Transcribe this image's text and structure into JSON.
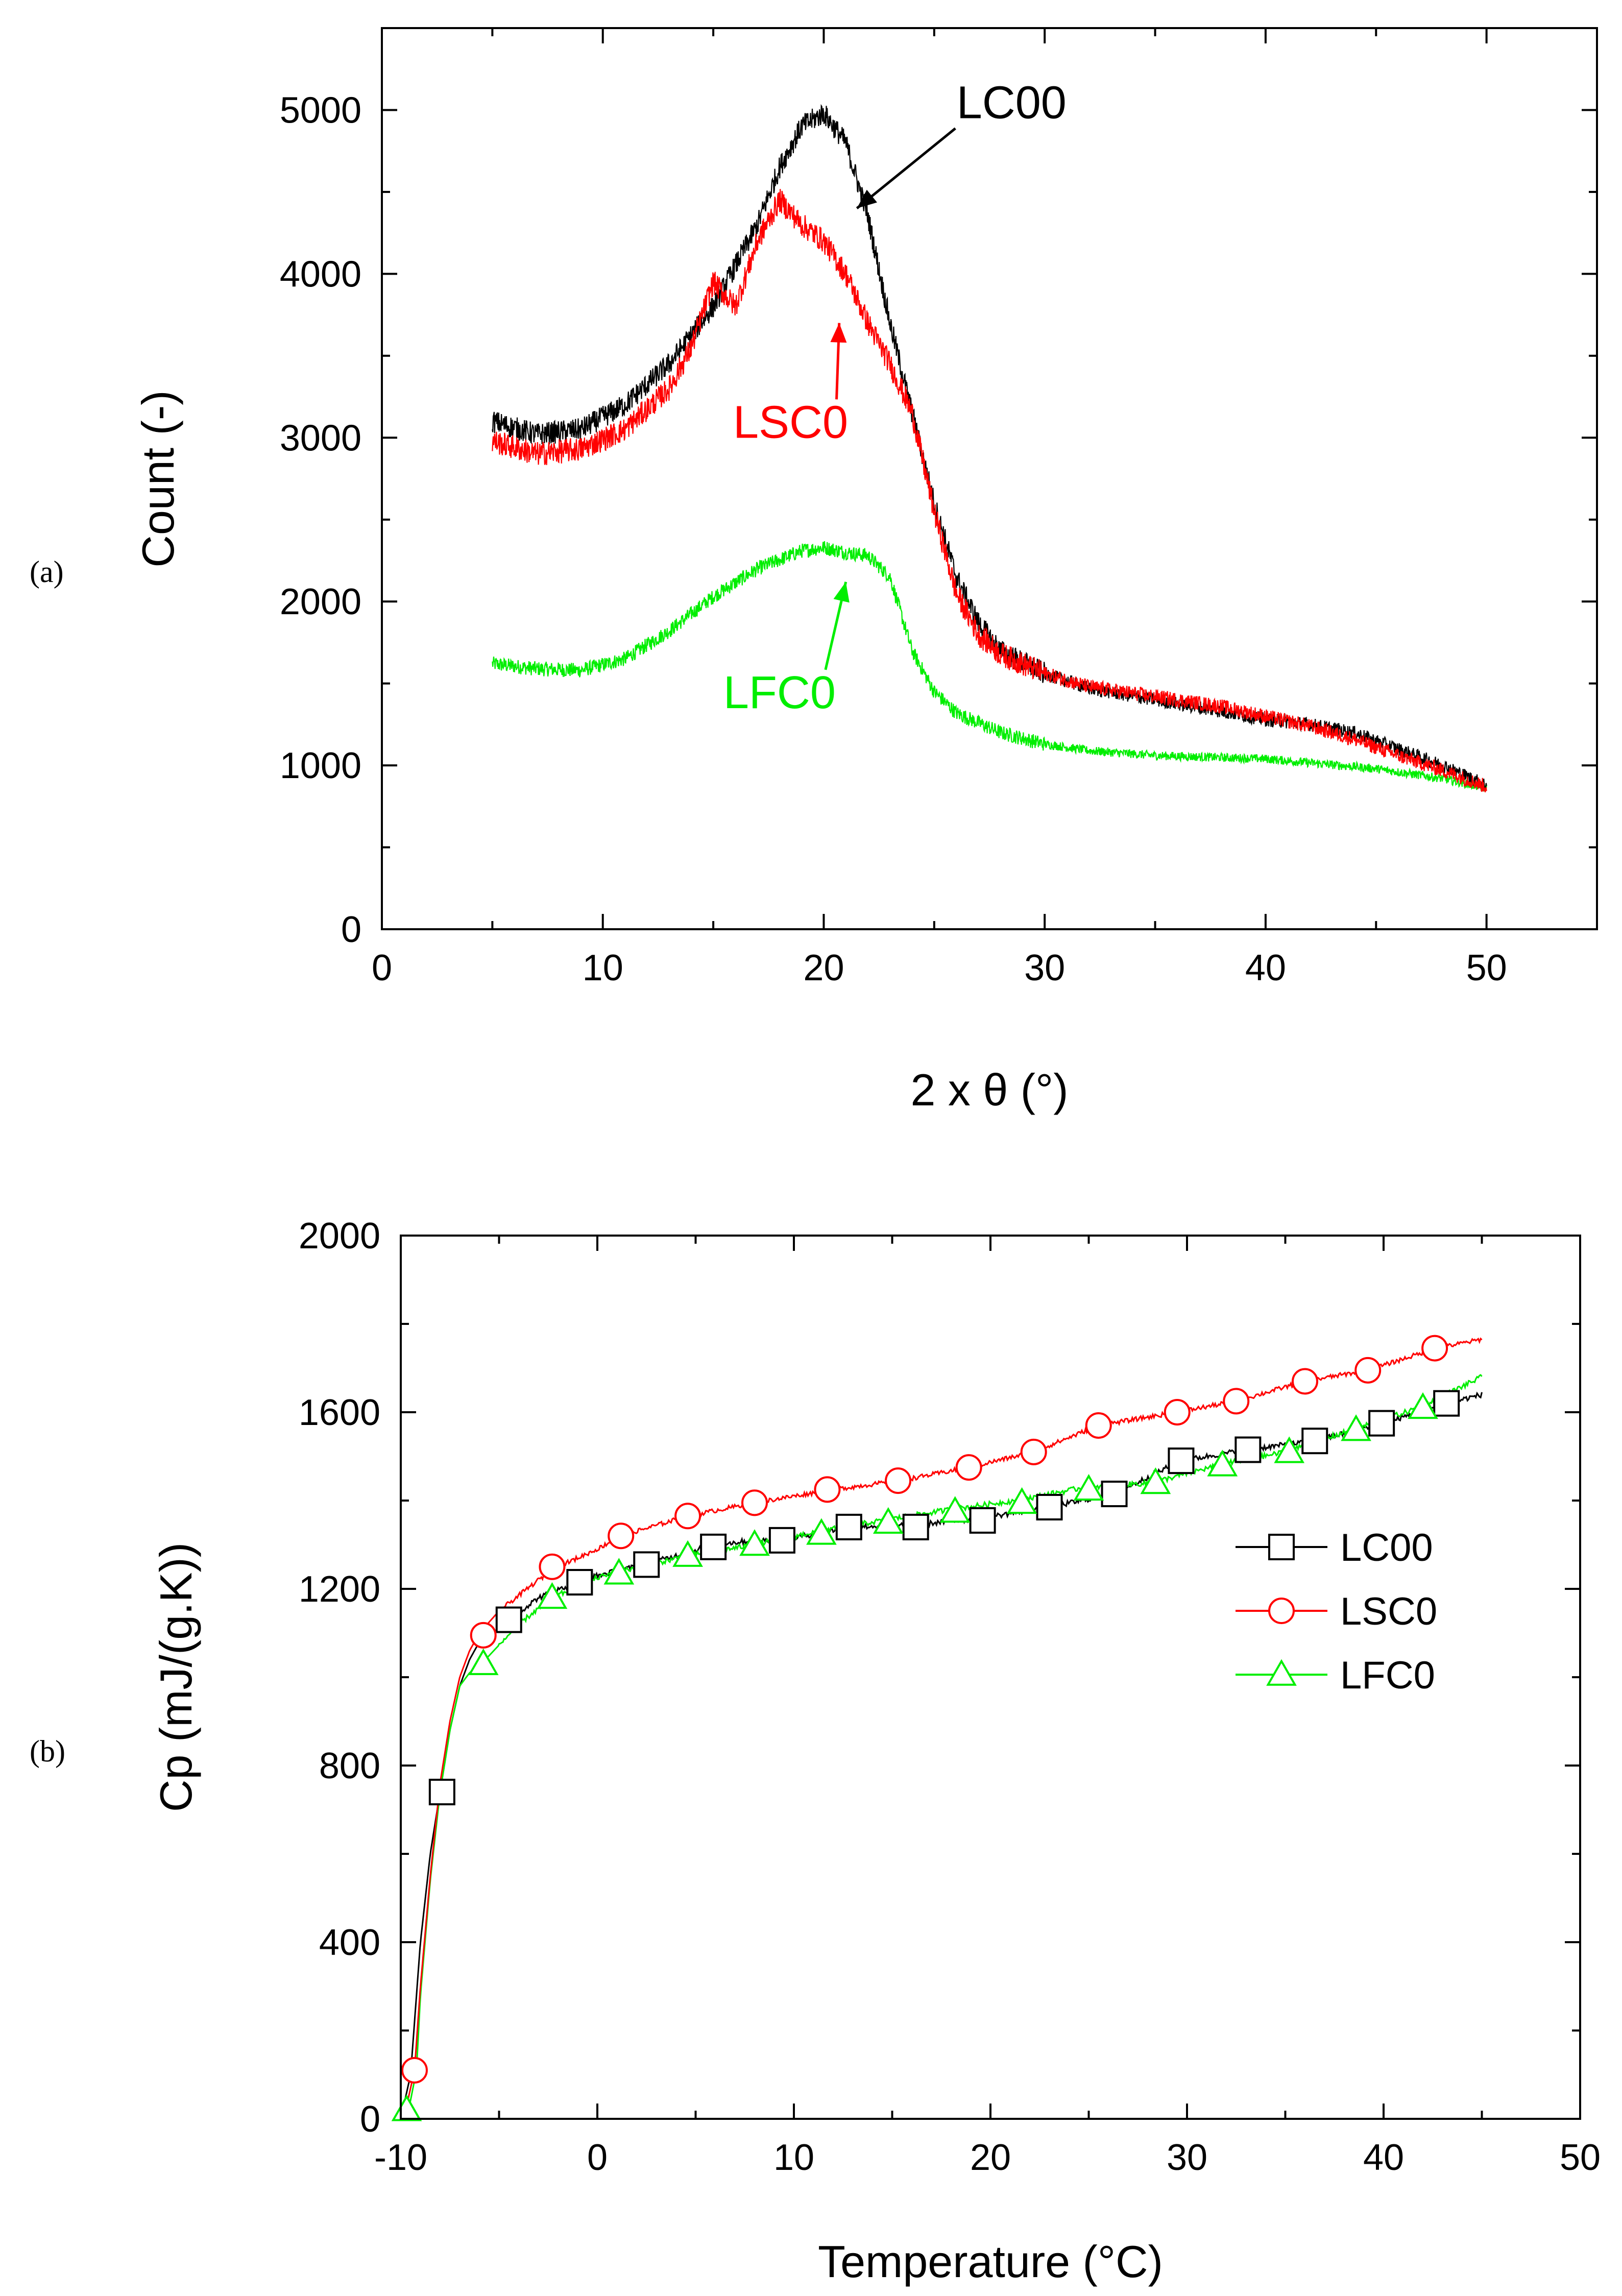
{
  "chart_data": [
    {
      "type": "line",
      "panel_label": "(a)",
      "title": "",
      "xlabel": "2 x θ (°)",
      "ylabel": "Count (-)",
      "xlim": [
        0,
        55
      ],
      "ylim": [
        0,
        5500
      ],
      "x_ticks": [
        0,
        10,
        20,
        30,
        40,
        50
      ],
      "y_ticks": [
        0,
        1000,
        2000,
        3000,
        4000,
        5000
      ],
      "grid": false,
      "series": [
        {
          "name": "LC00",
          "color": "#000000",
          "x": [
            5,
            7,
            9,
            11,
            13,
            15,
            17,
            18,
            19,
            20,
            21,
            22,
            23,
            24,
            25,
            26,
            27,
            28,
            30,
            32,
            35,
            38,
            40,
            42,
            44,
            46,
            48,
            50
          ],
          "y": [
            3100,
            3020,
            3050,
            3200,
            3450,
            3800,
            4300,
            4650,
            4900,
            4980,
            4800,
            4350,
            3700,
            3150,
            2600,
            2150,
            1870,
            1700,
            1560,
            1470,
            1400,
            1330,
            1280,
            1250,
            1200,
            1100,
            1000,
            880
          ]
        },
        {
          "name": "LSC0",
          "color": "#ff0000",
          "x": [
            5,
            7,
            9,
            11,
            13,
            14,
            15,
            16,
            17,
            18,
            19,
            20,
            21,
            22,
            23,
            24,
            25,
            26,
            27,
            28,
            30,
            32,
            35,
            38,
            40,
            42,
            44,
            46,
            48,
            50
          ],
          "y": [
            2980,
            2900,
            2930,
            3050,
            3300,
            3550,
            3950,
            3800,
            4200,
            4450,
            4300,
            4200,
            4000,
            3700,
            3450,
            3150,
            2550,
            2050,
            1800,
            1680,
            1560,
            1480,
            1420,
            1360,
            1300,
            1240,
            1160,
            1060,
            970,
            870
          ]
        },
        {
          "name": "LFC0",
          "color": "#00ee00",
          "x": [
            5,
            7,
            9,
            11,
            13,
            15,
            17,
            19,
            20,
            21,
            22,
            23,
            24,
            25,
            26,
            28,
            30,
            32,
            35,
            40,
            45,
            48,
            50
          ],
          "y": [
            1620,
            1590,
            1580,
            1650,
            1820,
            2030,
            2200,
            2310,
            2330,
            2300,
            2280,
            2150,
            1700,
            1450,
            1320,
            1200,
            1130,
            1090,
            1060,
            1040,
            980,
            920,
            860
          ]
        }
      ],
      "annotations": [
        {
          "text": "LC00",
          "color": "#000000",
          "arrow_to": [
            21.5,
            4400
          ],
          "text_at": [
            28.5,
            4950
          ]
        },
        {
          "text": "LSC0",
          "color": "#ff0000",
          "arrow_to": [
            20.7,
            3700
          ],
          "text_at": [
            18.5,
            3000
          ]
        },
        {
          "text": "LFC0",
          "color": "#00ee00",
          "arrow_to": [
            21.0,
            2120
          ],
          "text_at": [
            18.0,
            1350
          ]
        }
      ]
    },
    {
      "type": "line",
      "panel_label": "(b)",
      "title": "",
      "xlabel": "Temperature (°C)",
      "ylabel": "Cp (mJ/(g.K))",
      "xlim": [
        -10,
        50
      ],
      "ylim": [
        0,
        2000
      ],
      "x_ticks": [
        -10,
        0,
        10,
        20,
        30,
        40,
        50
      ],
      "y_ticks": [
        0,
        400,
        800,
        1200,
        1600,
        2000
      ],
      "grid": false,
      "legend": "right",
      "series": [
        {
          "name": "LC00",
          "color": "#000000",
          "marker": "square",
          "x": [
            -10,
            -9.5,
            -9,
            -8.5,
            -8,
            -7.5,
            -7,
            -6.5,
            -6,
            -5,
            -4.5,
            -3,
            -1,
            0,
            2.4,
            4,
            5.9,
            8,
            9.4,
            12.8,
            16.2,
            19.5,
            23,
            26.3,
            29.7,
            33,
            36.5,
            40,
            43.2,
            45
          ],
          "y": [
            0,
            100,
            400,
            600,
            740,
            880,
            980,
            1040,
            1080,
            1110,
            1130,
            1180,
            1215,
            1230,
            1255,
            1275,
            1300,
            1310,
            1310,
            1340,
            1345,
            1360,
            1385,
            1415,
            1490,
            1515,
            1535,
            1575,
            1620,
            1640
          ],
          "marker_x": [
            -7.9,
            -4.5,
            -0.9,
            2.5,
            5.9,
            9.4,
            12.8,
            16.2,
            19.6,
            23,
            26.3,
            29.7,
            33.1,
            36.5,
            39.9,
            43.2
          ],
          "marker_y": [
            740,
            1130,
            1215,
            1255,
            1295,
            1310,
            1340,
            1340,
            1355,
            1385,
            1415,
            1490,
            1515,
            1535,
            1575,
            1620
          ]
        },
        {
          "name": "LSC0",
          "color": "#ff0000",
          "marker": "circle",
          "x": [
            -10,
            -9.7,
            -9.3,
            -9,
            -8.5,
            -8,
            -7.5,
            -7,
            -6.5,
            -6,
            -5,
            -4,
            -3,
            -2,
            0,
            1.2,
            4.6,
            8,
            12,
            15.4,
            18.9,
            22.2,
            25.5,
            29.5,
            32.5,
            36,
            39.2,
            42.7,
            45
          ],
          "y": [
            0,
            30,
            110,
            300,
            550,
            760,
            900,
            1000,
            1060,
            1100,
            1150,
            1185,
            1220,
            1250,
            1290,
            1320,
            1365,
            1395,
            1425,
            1445,
            1475,
            1510,
            1570,
            1600,
            1625,
            1670,
            1695,
            1745,
            1765
          ],
          "marker_x": [
            -9.3,
            -5.8,
            -2.3,
            1.2,
            4.6,
            8.0,
            11.7,
            15.3,
            18.9,
            22.2,
            25.5,
            29.5,
            32.5,
            36.0,
            39.2,
            42.6
          ],
          "marker_y": [
            110,
            1095,
            1250,
            1320,
            1365,
            1395,
            1425,
            1445,
            1475,
            1510,
            1570,
            1600,
            1625,
            1670,
            1695,
            1745
          ]
        },
        {
          "name": "LFC0",
          "color": "#00ee00",
          "marker": "triangle",
          "x": [
            -10,
            -9.6,
            -9.2,
            -9,
            -8.5,
            -8,
            -7.5,
            -7,
            -6.5,
            -5.8,
            -4,
            -2.3,
            0,
            1.2,
            4.6,
            8,
            11.2,
            14.5,
            18,
            21.3,
            24.8,
            28.2,
            31.6,
            35,
            38.4,
            41.8,
            45
          ],
          "y": [
            0,
            20,
            110,
            280,
            540,
            740,
            880,
            980,
            1010,
            1035,
            1120,
            1180,
            1225,
            1240,
            1275,
            1300,
            1330,
            1355,
            1380,
            1400,
            1430,
            1440,
            1480,
            1510,
            1560,
            1610,
            1680
          ],
          "marker_x": [
            -9.7,
            -5.8,
            -2.3,
            1.1,
            4.6,
            8.0,
            11.4,
            14.8,
            18.2,
            21.6,
            25.0,
            28.4,
            31.8,
            35.2,
            38.6,
            42.0
          ],
          "marker_y": [
            20,
            1030,
            1180,
            1235,
            1275,
            1300,
            1325,
            1350,
            1375,
            1395,
            1425,
            1440,
            1480,
            1510,
            1560,
            1610
          ]
        }
      ]
    }
  ]
}
